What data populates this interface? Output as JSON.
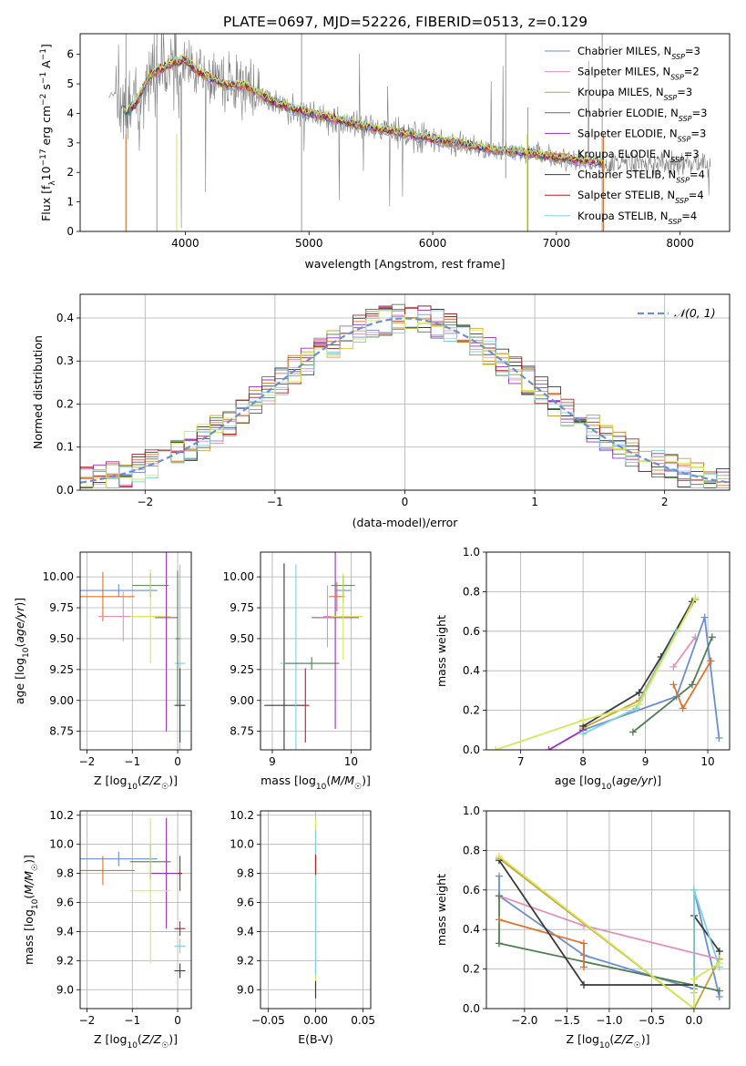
{
  "figure": {
    "title": "PLATE=0697, MJD=52226, FIBERID=0513, z=0.129"
  },
  "colors": {
    "chabrier_miles": "#6a8fd6",
    "salpeter_miles": "#e88fb8",
    "kroupa_miles": "#c9a23a",
    "chabrier_elodie": "#4f7f4f",
    "salpeter_elodie": "#9b30c0",
    "kroupa_elodie": "#e0732a",
    "chabrier_stelib": "#3a3a3a",
    "salpeter_stelib": "#b22020",
    "kroupa_stelib": "#7fd0e0",
    "extra_model": "#d4e85a",
    "data": "#808080"
  },
  "chart_data": [
    {
      "id": "spectrum",
      "type": "line",
      "xlabel": "wavelength [Angstrom, rest frame]",
      "ylabel": "Flux [f_λ10^-17 erg cm^-2 s^-1 A^-1]",
      "xlim": [
        3150,
        8400
      ],
      "ylim": [
        0,
        6.7
      ],
      "xticks": [
        4000,
        5000,
        6000,
        7000,
        8000
      ],
      "yticks": [
        0,
        1,
        2,
        3,
        4,
        5,
        6
      ],
      "grid": false,
      "legend_position": "top-right",
      "legend": [
        {
          "label": "Chabrier MILES, N_SSP=3",
          "color_key": "chabrier_miles"
        },
        {
          "label": "Salpeter MILES, N_SSP=2",
          "color_key": "salpeter_miles"
        },
        {
          "label": "Kroupa MILES, N_SSP=3",
          "color_key": "kroupa_miles"
        },
        {
          "label": "Chabrier ELODIE, N_SSP=3",
          "color_key": "chabrier_elodie"
        },
        {
          "label": "Salpeter ELODIE, N_SSP=3",
          "color_key": "salpeter_elodie"
        },
        {
          "label": "Kroupa ELODIE, N_SSP=3",
          "color_key": "kroupa_elodie"
        },
        {
          "label": "Chabrier STELIB, N_SSP=4",
          "color_key": "chabrier_stelib"
        },
        {
          "label": "Salpeter STELIB, N_SSP=4",
          "color_key": "salpeter_stelib"
        },
        {
          "label": "Kroupa STELIB, N_SSP=4",
          "color_key": "kroupa_stelib"
        }
      ],
      "model_continuum": {
        "x": [
          3380,
          3450,
          3520,
          3600,
          3700,
          3800,
          3900,
          4000,
          4100,
          4200,
          4300,
          4500,
          4700,
          4900,
          5100,
          5300,
          5500,
          5700,
          5900,
          6100,
          6300,
          6500,
          6700,
          6900,
          7100,
          7300,
          7400
        ],
        "y": [
          4.6,
          4.7,
          4.0,
          4.3,
          5.2,
          5.5,
          5.7,
          5.8,
          5.4,
          5.2,
          5.0,
          4.9,
          4.4,
          4.1,
          3.9,
          3.7,
          3.5,
          3.35,
          3.2,
          3.05,
          2.9,
          2.75,
          2.7,
          2.55,
          2.45,
          2.35,
          2.3
        ]
      }
    },
    {
      "id": "residuals",
      "type": "line",
      "xlabel": "(data-model)/error",
      "ylabel": "Normed distribution",
      "xlim": [
        -2.5,
        2.5
      ],
      "ylim": [
        0,
        0.455
      ],
      "xticks": [
        -2,
        -1,
        0,
        1,
        2
      ],
      "yticks": [
        0.0,
        0.1,
        0.2,
        0.3,
        0.4
      ],
      "grid": true,
      "legend_position": "top-right",
      "legend": [
        {
          "label": "𝒩(0, 1)",
          "color_key": "chabrier_miles"
        }
      ],
      "gaussian": {
        "mean": 0,
        "sigma": 1
      }
    },
    {
      "id": "age_vs_Z",
      "type": "scatter",
      "xlabel": "Z [log10(Z/Z☉)]",
      "ylabel": "age [log10(age/yr)]",
      "xlim": [
        -2.15,
        0.3
      ],
      "ylim": [
        8.6,
        10.2
      ],
      "xticks": [
        -2,
        -1,
        0
      ],
      "yticks": [
        8.75,
        9.0,
        9.25,
        9.5,
        9.75,
        10.0
      ],
      "grid": true,
      "points": [
        {
          "x": -1.3,
          "y": 9.89,
          "xerr": 0.85,
          "yerr": 0.05,
          "color_key": "chabrier_miles"
        },
        {
          "x": -1.65,
          "y": 9.84,
          "xerr": 0.7,
          "yerr": 0.2,
          "color_key": "kroupa_elodie"
        },
        {
          "x": -0.6,
          "y": 9.93,
          "xerr": 0.4,
          "yerr": 0.1,
          "color_key": "chabrier_elodie"
        },
        {
          "x": -1.2,
          "y": 9.68,
          "xerr": 0.55,
          "yerr": 0.2,
          "color_key": "salpeter_miles"
        },
        {
          "x": -0.6,
          "y": 9.68,
          "xerr": 0.45,
          "yerr": 0.38,
          "color_key": "extra_model"
        },
        {
          "x": -0.25,
          "y": 9.67,
          "xerr": 0.25,
          "yerr": 0.92,
          "color_key": "salpeter_elodie"
        },
        {
          "x": 0.05,
          "y": 9.3,
          "xerr": 0.12,
          "yerr": 0.8,
          "color_key": "kroupa_stelib"
        },
        {
          "x": 0.05,
          "y": 8.96,
          "xerr": 0.12,
          "yerr": 0.3,
          "color_key": "chabrier_stelib"
        },
        {
          "x": 0.0,
          "y": 9.5,
          "xerr": 0.05,
          "yerr": 0.55,
          "color_key": "chabrier_elodie"
        }
      ]
    },
    {
      "id": "age_vs_mass",
      "type": "scatter",
      "xlabel": "mass [log10(M/M☉)]",
      "ylabel": "",
      "xlim": [
        8.85,
        10.25
      ],
      "ylim": [
        8.6,
        10.2
      ],
      "xticks": [
        9,
        10
      ],
      "yticks": [
        8.75,
        9.0,
        9.25,
        9.5,
        9.75,
        10.0
      ],
      "grid": true,
      "points": [
        {
          "x": 9.15,
          "y": 8.96,
          "xerr": 0.25,
          "yerr": 1.15,
          "color_key": "chabrier_stelib"
        },
        {
          "x": 9.42,
          "y": 8.96,
          "xerr": 0.05,
          "yerr": 0.3,
          "color_key": "salpeter_stelib"
        },
        {
          "x": 9.3,
          "y": 9.3,
          "xerr": 0.2,
          "yerr": 0.8,
          "color_key": "kroupa_stelib"
        },
        {
          "x": 9.5,
          "y": 9.3,
          "xerr": 0.35,
          "yerr": 0.05,
          "color_key": "chabrier_elodie"
        },
        {
          "x": 9.8,
          "y": 9.67,
          "xerr": 0.3,
          "yerr": 0.9,
          "color_key": "salpeter_elodie"
        },
        {
          "x": 9.9,
          "y": 9.93,
          "xerr": 0.15,
          "yerr": 0.08,
          "color_key": "chabrier_elodie"
        },
        {
          "x": 9.82,
          "y": 9.84,
          "xerr": 0.1,
          "yerr": 0.12,
          "color_key": "kroupa_elodie"
        },
        {
          "x": 9.9,
          "y": 9.89,
          "xerr": 0.1,
          "yerr": 0.1,
          "color_key": "chabrier_miles"
        },
        {
          "x": 9.9,
          "y": 9.68,
          "xerr": 0.25,
          "yerr": 0.35,
          "color_key": "extra_model"
        },
        {
          "x": 9.7,
          "y": 9.68,
          "xerr": 0.05,
          "yerr": 0.25,
          "color_key": "salpeter_miles"
        }
      ]
    },
    {
      "id": "massweight_vs_age",
      "type": "line",
      "xlabel": "age [log10(age/yr)]",
      "ylabel": "mass weight",
      "xlim": [
        6.45,
        10.35
      ],
      "ylim": [
        0,
        1.0
      ],
      "xticks": [
        7,
        8,
        9,
        10
      ],
      "yticks": [
        0.0,
        0.2,
        0.4,
        0.6,
        0.8,
        1.0
      ],
      "grid": true,
      "series": [
        {
          "color_key": "chabrier_miles",
          "x": [
            8.0,
            9.5,
            9.95,
            10.18
          ],
          "y": [
            0.1,
            0.27,
            0.67,
            0.06
          ]
        },
        {
          "color_key": "salpeter_miles",
          "x": [
            9.45,
            9.8
          ],
          "y": [
            0.42,
            0.57
          ]
        },
        {
          "color_key": "kroupa_miles",
          "x": [
            8.0,
            8.9,
            9.5,
            9.8
          ],
          "y": [
            0.11,
            0.25,
            0.6,
            0.76
          ]
        },
        {
          "color_key": "chabrier_elodie",
          "x": [
            8.8,
            9.75,
            10.07
          ],
          "y": [
            0.09,
            0.33,
            0.57
          ]
        },
        {
          "color_key": "salpeter_elodie",
          "x": [
            7.45,
            8.0
          ],
          "y": [
            0.0,
            0.1
          ]
        },
        {
          "color_key": "kroupa_elodie",
          "x": [
            9.45,
            9.6,
            10.05
          ],
          "y": [
            0.33,
            0.21,
            0.45
          ]
        },
        {
          "color_key": "chabrier_stelib",
          "x": [
            8.0,
            8.9,
            9.25,
            9.75
          ],
          "y": [
            0.12,
            0.29,
            0.47,
            0.75
          ]
        },
        {
          "color_key": "kroupa_stelib",
          "x": [
            8.0,
            8.85,
            9.5
          ],
          "y": [
            0.08,
            0.21,
            0.6
          ]
        },
        {
          "color_key": "extra_model",
          "x": [
            6.6,
            8.0,
            8.9,
            9.8
          ],
          "y": [
            0.0,
            0.15,
            0.23,
            0.77
          ]
        }
      ]
    },
    {
      "id": "mass_vs_Z",
      "type": "scatter",
      "xlabel": "Z [log10(Z/Z☉)]",
      "ylabel": "mass [log10(M/M☉)]",
      "xlim": [
        -2.15,
        0.3
      ],
      "ylim": [
        8.87,
        10.23
      ],
      "xticks": [
        -2,
        -1,
        0
      ],
      "yticks": [
        9.0,
        9.2,
        9.4,
        9.6,
        9.8,
        10.0,
        10.2
      ],
      "grid": true,
      "points": [
        {
          "x": -1.3,
          "y": 9.9,
          "xerr": 0.85,
          "yerr": 0.05,
          "color_key": "chabrier_miles"
        },
        {
          "x": -1.65,
          "y": 9.82,
          "xerr": 0.7,
          "yerr": 0.1,
          "color_key": "kroupa_elodie"
        },
        {
          "x": -0.6,
          "y": 9.88,
          "xerr": 0.45,
          "yerr": 0.12,
          "color_key": "chabrier_elodie"
        },
        {
          "x": -0.25,
          "y": 9.8,
          "xerr": 0.35,
          "yerr": 0.38,
          "color_key": "salpeter_elodie"
        },
        {
          "x": -0.6,
          "y": 9.68,
          "xerr": 0.45,
          "yerr": 0.5,
          "color_key": "extra_model"
        },
        {
          "x": 0.05,
          "y": 9.8,
          "xerr": 0.05,
          "yerr": 0.12,
          "color_key": "salpeter_stelib"
        },
        {
          "x": 0.05,
          "y": 9.42,
          "xerr": 0.12,
          "yerr": 0.05,
          "color_key": "salpeter_stelib"
        },
        {
          "x": 0.05,
          "y": 9.3,
          "xerr": 0.12,
          "yerr": 0.05,
          "color_key": "kroupa_stelib"
        },
        {
          "x": 0.05,
          "y": 9.13,
          "xerr": 0.12,
          "yerr": 0.05,
          "color_key": "chabrier_stelib"
        }
      ]
    },
    {
      "id": "mass_vs_ebv",
      "type": "scatter",
      "xlabel": "E(B-V)",
      "ylabel": "",
      "xlim": [
        -0.058,
        0.058
      ],
      "ylim": [
        8.87,
        10.23
      ],
      "xticks": [
        -0.05,
        0.0,
        0.05
      ],
      "xticklabels": [
        "−0.05",
        "0.00",
        "0.05"
      ],
      "yticks": [
        9.0,
        9.2,
        9.4,
        9.6,
        9.8,
        10.0,
        10.2
      ],
      "grid": true,
      "points": [
        {
          "x": 0.0,
          "y": 9.6,
          "xerr": 0.0,
          "yerr": 0.58,
          "color_key": "extra_model"
        },
        {
          "x": 0.0,
          "y": 9.6,
          "xerr": 0.0,
          "yerr": 0.5,
          "color_key": "kroupa_stelib"
        },
        {
          "x": 0.0,
          "y": 9.86,
          "xerr": 0.0,
          "yerr": 0.07,
          "color_key": "salpeter_stelib"
        },
        {
          "x": 0.0,
          "y": 9.0,
          "xerr": 0.0,
          "yerr": 0.06,
          "color_key": "chabrier_stelib"
        }
      ]
    },
    {
      "id": "massweight_vs_Z",
      "type": "line",
      "xlabel": "Z [log10(Z/Z☉)]",
      "ylabel": "mass weight",
      "xlim": [
        -2.45,
        0.42
      ],
      "ylim": [
        0,
        1.0
      ],
      "xticks": [
        -2.0,
        -1.5,
        -1.0,
        -0.5,
        0.0
      ],
      "yticks": [
        0.0,
        0.2,
        0.4,
        0.6,
        0.8,
        1.0
      ],
      "grid": true,
      "series": [
        {
          "color_key": "chabrier_miles",
          "x": [
            -2.3,
            -2.3,
            -1.3,
            0.0,
            0.0,
            0.3
          ],
          "y": [
            0.67,
            0.57,
            0.27,
            0.1,
            0.6,
            0.06
          ]
        },
        {
          "color_key": "salpeter_miles",
          "x": [
            -2.3,
            -1.3,
            0.3
          ],
          "y": [
            0.57,
            0.42,
            0.25
          ]
        },
        {
          "color_key": "kroupa_miles",
          "x": [
            -2.3,
            0.0,
            0.3
          ],
          "y": [
            0.76,
            0.0,
            0.25
          ]
        },
        {
          "color_key": "chabrier_elodie",
          "x": [
            -2.3,
            -2.3,
            0.3
          ],
          "y": [
            0.57,
            0.33,
            0.09
          ]
        },
        {
          "color_key": "kroupa_elodie",
          "x": [
            -2.3,
            -1.3,
            -1.3
          ],
          "y": [
            0.45,
            0.33,
            0.21
          ]
        },
        {
          "color_key": "chabrier_stelib",
          "x": [
            -2.3,
            -1.3,
            0.0,
            0.0,
            0.3
          ],
          "y": [
            0.75,
            0.12,
            0.12,
            0.47,
            0.29
          ]
        },
        {
          "color_key": "kroupa_stelib",
          "x": [
            0.0,
            0.0,
            0.3
          ],
          "y": [
            0.08,
            0.6,
            0.21
          ]
        },
        {
          "color_key": "extra_model",
          "x": [
            -2.3,
            0.0,
            0.0,
            0.3
          ],
          "y": [
            0.77,
            0.0,
            0.15,
            0.23
          ]
        }
      ]
    }
  ]
}
